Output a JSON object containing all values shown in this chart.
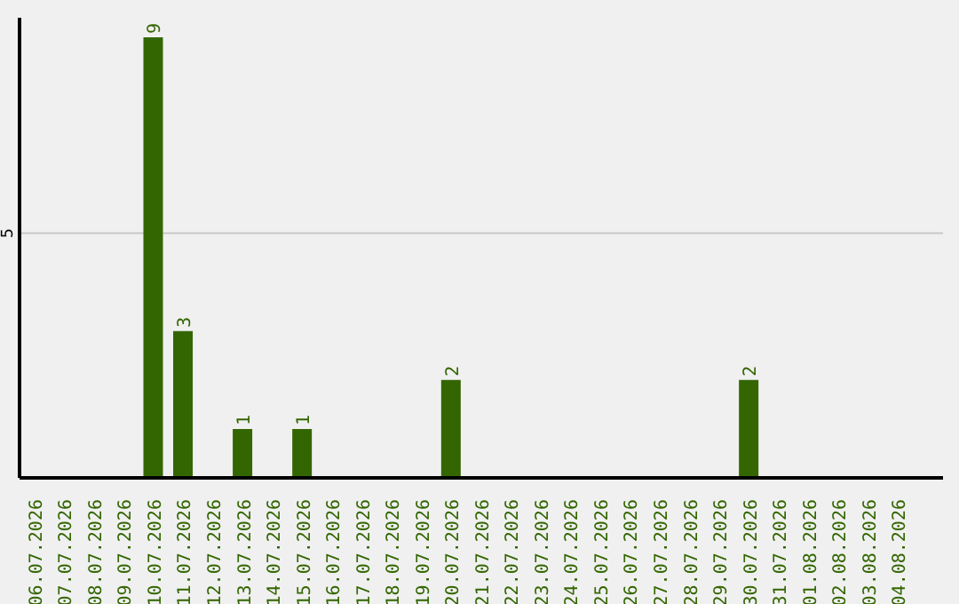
{
  "chart_data": {
    "type": "bar",
    "categories": [
      "06.07.2026",
      "07.07.2026",
      "08.07.2026",
      "09.07.2026",
      "10.07.2026",
      "11.07.2026",
      "12.07.2026",
      "13.07.2026",
      "14.07.2026",
      "15.07.2026",
      "16.07.2026",
      "17.07.2026",
      "18.07.2026",
      "19.07.2026",
      "20.07.2026",
      "21.07.2026",
      "22.07.2026",
      "23.07.2026",
      "24.07.2026",
      "25.07.2026",
      "26.07.2026",
      "27.07.2026",
      "28.07.2026",
      "29.07.2026",
      "30.07.2026",
      "31.07.2026",
      "01.08.2026",
      "02.08.2026",
      "03.08.2026",
      "04.08.2026"
    ],
    "values": [
      null,
      null,
      null,
      null,
      9,
      3,
      null,
      1,
      null,
      1,
      null,
      null,
      null,
      null,
      2,
      null,
      null,
      null,
      null,
      null,
      null,
      null,
      null,
      null,
      2,
      null,
      null,
      null,
      null,
      null
    ],
    "color": "#336600",
    "ylim": [
      0,
      9.4
    ],
    "yticks": [
      5
    ],
    "grid": "y",
    "data_labels": true
  }
}
